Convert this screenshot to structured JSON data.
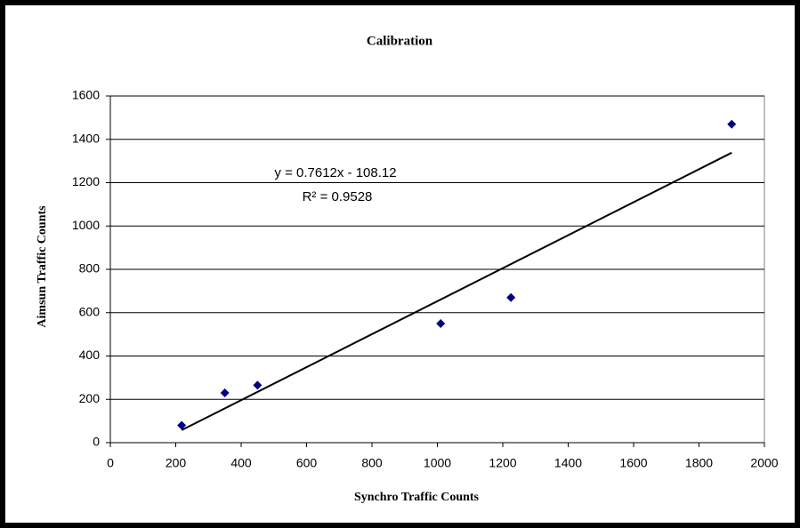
{
  "chart_data": {
    "type": "scatter",
    "title": "Calibration",
    "x_label": "Synchro Traffic Counts",
    "y_label": "Aimsun Traffic Counts",
    "series": [
      {
        "name": "Calibration",
        "color": "#000080",
        "x": [
          218,
          350,
          450,
          1010,
          1225,
          1900
        ],
        "values": [
          80,
          230,
          265,
          550,
          670,
          1470
        ]
      }
    ],
    "trendline": {
      "slope": 0.7612,
      "intercept": -108.12,
      "color": "#000000",
      "equation": "y = 0.7612x - 108.12",
      "r2": "R² = 0.9528"
    },
    "xlim": [
      0,
      2000
    ],
    "xticks": [
      0,
      200,
      400,
      600,
      800,
      1000,
      1200,
      1400,
      1600,
      1800,
      2000
    ],
    "ylim": [
      0,
      1600
    ],
    "yticks": [
      0,
      200,
      400,
      600,
      800,
      1000,
      1200,
      1400,
      1600
    ],
    "grid": true
  }
}
